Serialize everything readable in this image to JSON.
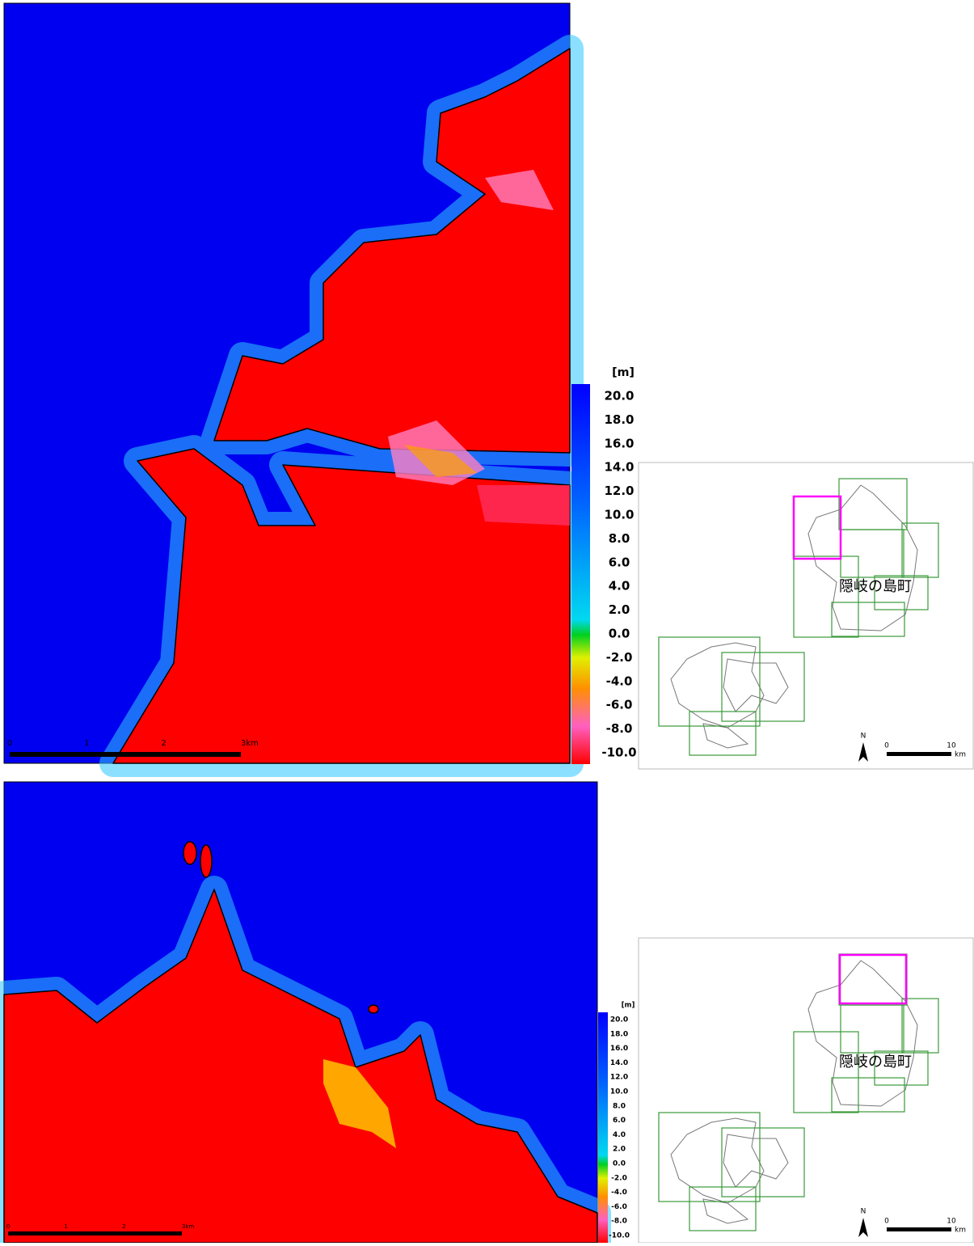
{
  "panels": [
    {
      "scale_bar": {
        "labels": [
          "0",
          "1",
          "2",
          "3km"
        ]
      },
      "colorbar": {
        "unit": "[m]",
        "labels": [
          "20.0",
          "18.0",
          "16.0",
          "14.0",
          "12.0",
          "10.0",
          "8.0",
          "6.0",
          "4.0",
          "2.0",
          "0.0",
          "-2.0",
          "-4.0",
          "-6.0",
          "-8.0",
          "-10.0"
        ]
      },
      "inset": {
        "label": "隠岐の島町",
        "north": "N",
        "scale_labels": [
          "0",
          "10"
        ],
        "scale_unit": "km"
      }
    },
    {
      "scale_bar": {
        "labels": [
          "0",
          "1",
          "2",
          "3km"
        ]
      },
      "colorbar": {
        "unit": "[m]",
        "labels": [
          "20.0",
          "18.0",
          "16.0",
          "14.0",
          "12.0",
          "10.0",
          "8.0",
          "6.0",
          "4.0",
          "2.0",
          "0.0",
          "-2.0",
          "-4.0",
          "-6.0",
          "-8.0",
          "-10.0"
        ]
      },
      "inset": {
        "label": "隠岐の島町",
        "north": "N",
        "scale_labels": [
          "0",
          "10"
        ],
        "scale_unit": "km"
      }
    }
  ]
}
